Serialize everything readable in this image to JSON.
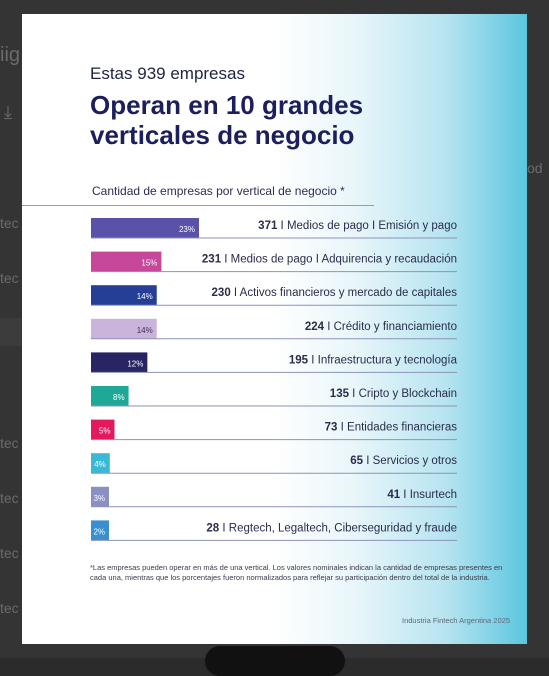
{
  "background": {
    "left_fragments": [
      "tec",
      "tec",
      "tec",
      "tec",
      "tec",
      "tec",
      "tec"
    ],
    "top_fragment": "iig",
    "right_fragment": "od"
  },
  "card": {
    "subtitle": "Estas 939 empresas",
    "title": "Operan en 10 grandes verticales de negocio",
    "axis_caption": "Cantidad de empresas por vertical de negocio *",
    "footnote": "*Las empresas pueden operar en más de una vertical. Los valores nominales indican la cantidad de empresas presentes en cada una, mientras que los porcentajes fueron normalizados para reflejar su participación dentro del total de la industria.",
    "credit": "Industria Fintech Argentina 2025"
  },
  "chart_data": {
    "type": "bar",
    "orientation": "horizontal",
    "title": "Operan en 10 grandes verticales de negocio",
    "xlabel": "Cantidad de empresas por vertical de negocio *",
    "ylabel": "",
    "xlim": [
      0,
      371
    ],
    "grid": false,
    "legend": "none",
    "categories": [
      "Medios de pago I Emisión y pago",
      "Medios de pago I Adquirencia y recaudación",
      "Activos financieros y mercado de capitales",
      "Crédito y financiamiento",
      "Infraestructura y tecnología",
      "Cripto y Blockchain",
      "Entidades financieras",
      "Servicios y otros",
      "Insurtech",
      "Regtech, Legaltech, Ciberseguridad y fraude"
    ],
    "values": [
      371,
      231,
      230,
      224,
      195,
      135,
      73,
      65,
      41,
      28
    ],
    "percents": [
      "23%",
      "15%",
      "14%",
      "14%",
      "12%",
      "8%",
      "5%",
      "4%",
      "3%",
      "2%"
    ],
    "percent_values": [
      23,
      15,
      14,
      14,
      12,
      8,
      5,
      4,
      3,
      2
    ],
    "colors": [
      "#5a51a8",
      "#c7479b",
      "#253f97",
      "#cbb4dc",
      "#272563",
      "#1ea896",
      "#e5185d",
      "#39b9d6",
      "#8a8fc4",
      "#3b8fcf"
    ]
  }
}
